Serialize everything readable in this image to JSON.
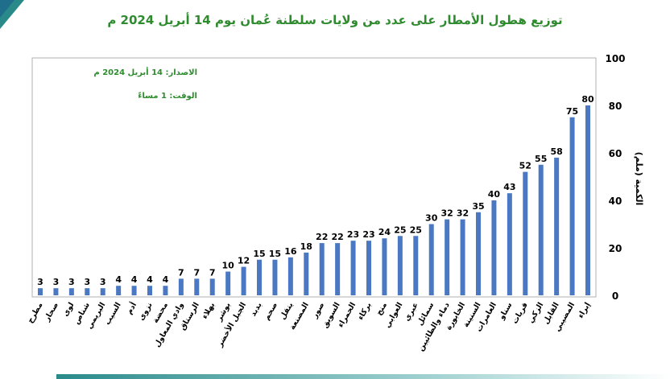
{
  "chart_data": {
    "type": "bar",
    "title": "توزيع هطول الأمطار على عدد من ولايات سلطنة عُمان يوم 14 أبريل 2024 م",
    "ylabel": "الكمية (ملم)",
    "ylim": [
      0,
      100
    ],
    "yticks": [
      0,
      20,
      40,
      60,
      80,
      100
    ],
    "categories": [
      "مطرح",
      "صحار",
      "لوى",
      "شناص",
      "البريمي",
      "السيب",
      "أدم",
      "نزوى",
      "محضة",
      "وادي المعاول",
      "الرستاق",
      "بهلاء",
      "بوشر",
      "الجبل الأخضر",
      "بدبد",
      "صحم",
      "ينقل",
      "المصنعة",
      "صور",
      "السويق",
      "الحمراء",
      "بركاء",
      "منح",
      "العوابي",
      "عبري",
      "سمائل",
      "دماء والطائيين",
      "الخابورة",
      "السنينة",
      "العامرات",
      "سناو",
      "قريات",
      "الزكي",
      "القابل",
      "المضيبي",
      "إبراء"
    ],
    "values": [
      3,
      3,
      3,
      3,
      3,
      4,
      4,
      4,
      4,
      7,
      7,
      7,
      10,
      12,
      15,
      15,
      16,
      18,
      22,
      22,
      23,
      23,
      24,
      25,
      25,
      30,
      32,
      32,
      35,
      40,
      43,
      52,
      55,
      58,
      75,
      80
    ],
    "bar_color": "#4a78c2",
    "grid": false,
    "annotations": [
      "الاصدار: 14 أبريل 2024 م",
      "الوقت: 1 مساءً"
    ]
  }
}
